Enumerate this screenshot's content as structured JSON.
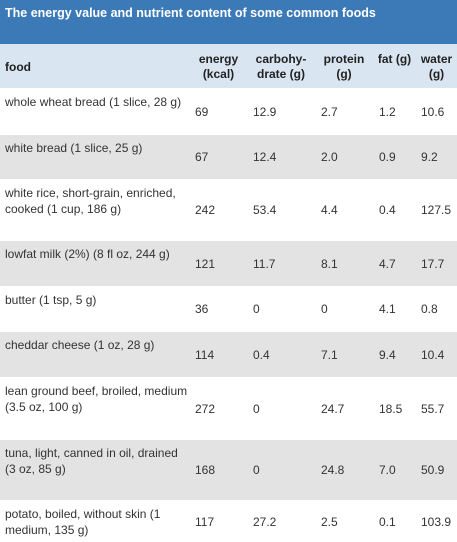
{
  "title": "The energy value and nutrient content of some common foods",
  "columns": {
    "food": "food",
    "energy": "energy (kcal)",
    "carb": "carbohy-drate (g)",
    "protein": "protein (g)",
    "fat": "fat (g)",
    "water": "water (g)"
  },
  "rows": [
    {
      "food": "whole wheat bread (1 slice, 28 g)",
      "energy": "69",
      "carb": "12.9",
      "protein": "2.7",
      "fat": "1.2",
      "water": "10.6"
    },
    {
      "food": "white bread (1 slice, 25 g)",
      "energy": "67",
      "carb": "12.4",
      "protein": "2.0",
      "fat": "0.9",
      "water": "9.2"
    },
    {
      "food": "white rice, short-grain, enriched, cooked (1 cup, 186 g)",
      "energy": "242",
      "carb": "53.4",
      "protein": "4.4",
      "fat": "0.4",
      "water": "127.5"
    },
    {
      "food": "lowfat milk (2%) (8 fl oz, 244 g)",
      "energy": "121",
      "carb": "11.7",
      "protein": "8.1",
      "fat": "4.7",
      "water": "17.7"
    },
    {
      "food": "butter (1 tsp, 5 g)",
      "energy": "36",
      "carb": "0",
      "protein": "0",
      "fat": "4.1",
      "water": "0.8"
    },
    {
      "food": "cheddar cheese (1 oz, 28 g)",
      "energy": "114",
      "carb": "0.4",
      "protein": "7.1",
      "fat": "9.4",
      "water": "10.4"
    },
    {
      "food": "lean ground beef, broiled, medium (3.5 oz, 100 g)",
      "energy": "272",
      "carb": "0",
      "protein": "24.7",
      "fat": "18.5",
      "water": "55.7"
    },
    {
      "food": "tuna, light, canned in oil, drained (3 oz, 85 g)",
      "energy": "168",
      "carb": "0",
      "protein": "24.8",
      "fat": "7.0",
      "water": "50.9"
    },
    {
      "food": "potato, boiled, without skin (1 medium, 135 g)",
      "energy": "117",
      "carb": "27.2",
      "protein": "2.5",
      "fat": "0.1",
      "water": "103.9"
    }
  ]
}
